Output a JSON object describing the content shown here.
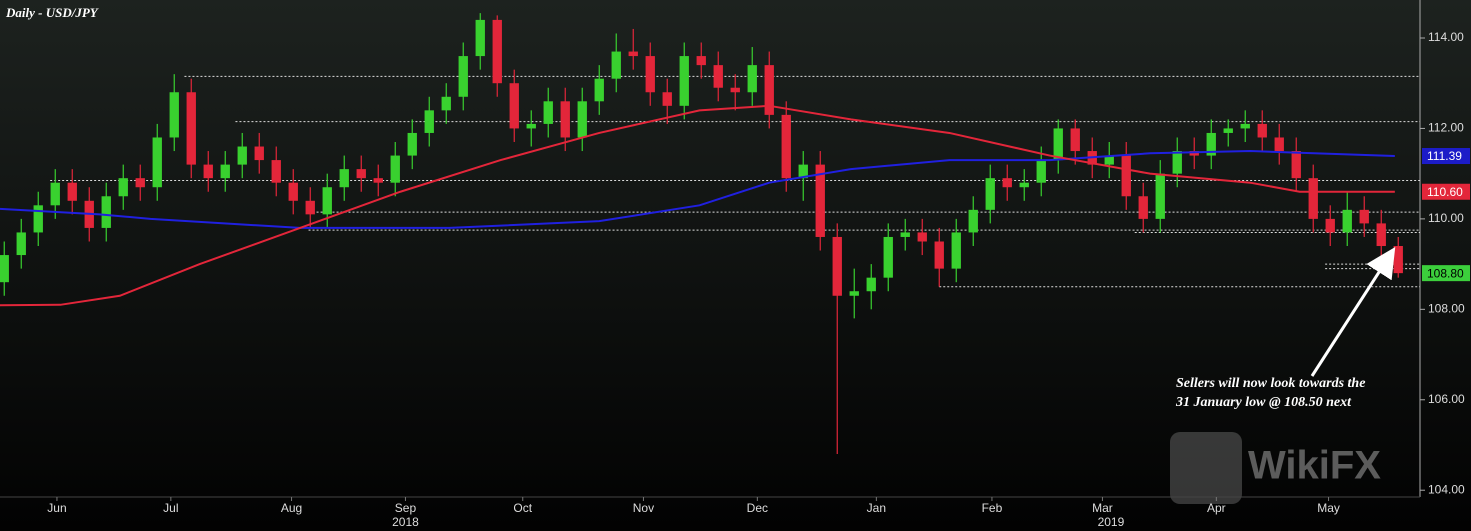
{
  "chart_data": {
    "type": "candlestick",
    "title": "Daily - USD/JPY",
    "x": [
      0,
      1,
      2,
      3,
      4,
      5,
      6,
      7,
      8,
      9,
      10,
      11,
      12,
      13,
      14,
      15,
      16,
      17,
      18,
      19,
      20,
      21,
      22,
      23,
      24,
      25,
      26,
      27,
      28,
      29,
      30,
      31,
      32,
      33,
      34,
      35,
      36,
      37,
      38,
      39,
      40,
      41,
      42,
      43,
      44,
      45,
      46,
      47,
      48,
      49,
      50,
      51,
      52,
      53,
      54,
      55,
      56,
      57,
      58,
      59,
      60,
      61,
      62,
      63,
      64,
      65,
      66,
      67,
      68,
      69,
      70,
      71,
      72,
      73,
      74,
      75,
      76,
      77,
      78,
      79,
      80,
      81,
      82
    ],
    "open": [
      108.6,
      109.2,
      109.7,
      110.3,
      110.8,
      110.4,
      109.8,
      110.5,
      110.9,
      110.7,
      111.8,
      112.8,
      111.2,
      110.9,
      111.2,
      111.6,
      111.3,
      110.8,
      110.4,
      110.1,
      110.7,
      111.1,
      110.9,
      110.8,
      111.4,
      111.9,
      112.4,
      112.7,
      113.6,
      114.4,
      113.0,
      112.0,
      112.1,
      112.6,
      111.8,
      112.6,
      113.1,
      113.7,
      113.6,
      112.8,
      112.5,
      113.6,
      113.4,
      112.9,
      112.8,
      113.4,
      112.3,
      110.9,
      111.2,
      109.6,
      108.3,
      108.4,
      108.7,
      109.6,
      109.7,
      109.5,
      108.9,
      109.7,
      110.2,
      110.9,
      110.7,
      110.8,
      111.3,
      112.0,
      111.5,
      111.2,
      111.4,
      110.5,
      110.0,
      111.0,
      111.5,
      111.4,
      111.9,
      112.0,
      112.1,
      111.8,
      111.5,
      110.9,
      110.0,
      109.7,
      110.2,
      109.9,
      109.4
    ],
    "high": [
      109.5,
      110.0,
      110.6,
      111.1,
      111.1,
      110.7,
      110.8,
      111.2,
      111.2,
      112.1,
      113.2,
      113.1,
      111.5,
      111.5,
      111.9,
      111.9,
      111.6,
      111.1,
      110.7,
      111.0,
      111.4,
      111.4,
      111.2,
      111.7,
      112.2,
      112.7,
      113.0,
      113.9,
      114.55,
      114.5,
      113.3,
      112.4,
      112.9,
      112.9,
      112.9,
      113.4,
      114.1,
      114.2,
      113.9,
      113.1,
      113.9,
      113.9,
      113.7,
      113.2,
      113.8,
      113.7,
      112.6,
      111.5,
      111.5,
      109.9,
      108.9,
      109.0,
      109.9,
      110.0,
      110.0,
      109.8,
      110.0,
      110.5,
      111.2,
      111.2,
      111.1,
      111.6,
      112.2,
      112.2,
      111.8,
      111.7,
      111.7,
      110.8,
      111.3,
      111.8,
      111.8,
      112.2,
      112.2,
      112.4,
      112.4,
      112.1,
      111.8,
      111.2,
      110.3,
      110.6,
      110.5,
      110.2,
      109.6
    ],
    "low": [
      108.3,
      108.9,
      109.4,
      110.0,
      110.1,
      109.5,
      109.5,
      110.2,
      110.4,
      110.4,
      111.5,
      110.9,
      110.6,
      110.6,
      110.9,
      111.0,
      110.5,
      110.1,
      109.8,
      109.8,
      110.4,
      110.6,
      110.5,
      110.5,
      111.1,
      111.6,
      112.1,
      112.4,
      113.3,
      112.7,
      111.7,
      111.6,
      111.8,
      111.5,
      111.5,
      112.3,
      112.8,
      113.3,
      112.5,
      112.1,
      112.2,
      113.1,
      112.6,
      112.4,
      112.5,
      112.0,
      110.6,
      110.4,
      109.3,
      104.8,
      107.8,
      108.0,
      108.4,
      109.3,
      109.2,
      108.5,
      108.6,
      109.4,
      109.9,
      110.4,
      110.4,
      110.5,
      111.0,
      111.2,
      110.9,
      110.9,
      110.2,
      109.7,
      109.7,
      110.7,
      111.1,
      111.1,
      111.6,
      111.7,
      111.5,
      111.2,
      110.6,
      109.7,
      109.4,
      109.4,
      109.6,
      109.1,
      108.7
    ],
    "close": [
      109.2,
      109.7,
      110.3,
      110.8,
      110.4,
      109.8,
      110.5,
      110.9,
      110.7,
      111.8,
      112.8,
      111.2,
      110.9,
      111.2,
      111.6,
      111.3,
      110.8,
      110.4,
      110.1,
      110.7,
      111.1,
      110.9,
      110.8,
      111.4,
      111.9,
      112.4,
      112.7,
      113.6,
      114.4,
      113.0,
      112.0,
      112.1,
      112.6,
      111.8,
      112.6,
      113.1,
      113.7,
      113.6,
      112.8,
      112.5,
      113.6,
      113.4,
      112.9,
      112.8,
      113.4,
      112.3,
      110.9,
      111.2,
      109.6,
      108.3,
      108.4,
      108.7,
      109.6,
      109.7,
      109.5,
      108.9,
      109.7,
      110.2,
      110.9,
      110.7,
      110.8,
      111.3,
      112.0,
      111.5,
      111.2,
      111.4,
      110.5,
      110.0,
      111.0,
      111.5,
      111.4,
      111.9,
      112.0,
      112.1,
      111.8,
      111.5,
      110.9,
      110.0,
      109.7,
      110.2,
      109.9,
      109.4,
      108.8
    ],
    "up_color": "#39d12f",
    "down_color": "#e3263a",
    "series": [
      {
        "color": "#2020e0",
        "x": [
          -0.25,
          5.6,
          8.6,
          17.4,
          26.2,
          35.0,
          40.9,
          45.0,
          49.8,
          55.6,
          61.5,
          67.4,
          73.3,
          81.8
        ],
        "values": [
          110.22,
          110.1,
          110.0,
          109.8,
          109.8,
          109.95,
          110.3,
          110.8,
          111.1,
          111.3,
          111.3,
          111.45,
          111.5,
          111.39
        ]
      },
      {
        "color": "#e3263a",
        "x": [
          -0.25,
          3.3,
          6.8,
          11.5,
          17.4,
          23.3,
          29.2,
          35.0,
          40.9,
          45.0,
          49.8,
          55.6,
          61.5,
          67.4,
          73.3,
          76.2,
          81.8
        ],
        "values": [
          108.09,
          108.1,
          108.3,
          109.0,
          109.8,
          110.6,
          111.3,
          111.9,
          112.4,
          112.5,
          112.2,
          111.9,
          111.4,
          111.0,
          110.8,
          110.6,
          110.6
        ]
      }
    ],
    "last_labels": [
      {
        "value": 111.39,
        "label": "111.39",
        "color": "#1c1cc8"
      },
      {
        "value": 110.6,
        "label": "110.60",
        "color": "#e3263a"
      },
      {
        "value": 108.8,
        "label": "108.80",
        "color": "#3ccf3c"
      }
    ],
    "levels": [
      {
        "value": 113.15,
        "from": 10.6
      },
      {
        "value": 112.15,
        "from": 13.6
      },
      {
        "value": 110.85,
        "from": 2.7
      },
      {
        "value": 110.15,
        "from": 17.9
      },
      {
        "value": 109.75,
        "from": 17.9
      },
      {
        "value": 109.7,
        "from": 66.5
      },
      {
        "value": 109.0,
        "from": 77.7
      },
      {
        "value": 108.9,
        "from": 77.7
      },
      {
        "value": 108.5,
        "from": 55.0
      }
    ],
    "xlim": [
      -0.25,
      83.28
    ],
    "ylim": [
      103.85,
      114.84
    ],
    "yticks": [
      {
        "value": 104,
        "label": "104.00"
      },
      {
        "value": 106,
        "label": "106.00"
      },
      {
        "value": 108,
        "label": "108.00"
      },
      {
        "value": 110,
        "label": "110.00"
      },
      {
        "value": 112,
        "label": "112.00"
      },
      {
        "value": 114,
        "label": "114.00"
      }
    ],
    "xticks": [
      {
        "value": 3.1,
        "label": "Jun"
      },
      {
        "value": 9.8,
        "label": "Jul"
      },
      {
        "value": 16.9,
        "label": "Aug"
      },
      {
        "value": 23.6,
        "label": "Sep"
      },
      {
        "value": 30.5,
        "label": "Oct"
      },
      {
        "value": 37.6,
        "label": "Nov"
      },
      {
        "value": 44.3,
        "label": "Dec"
      },
      {
        "value": 51.3,
        "label": "Jan"
      },
      {
        "value": 58.1,
        "label": "Feb"
      },
      {
        "value": 64.6,
        "label": "Mar"
      },
      {
        "value": 71.3,
        "label": "Apr"
      },
      {
        "value": 77.9,
        "label": "May"
      }
    ],
    "year_labels": [
      {
        "value": 23.6,
        "label": "2018"
      },
      {
        "value": 65.1,
        "label": "2019"
      }
    ],
    "annotation": [
      "Sellers will now look towards the",
      "31 January low @ 108.50 next"
    ],
    "watermark": "WikiFX"
  }
}
